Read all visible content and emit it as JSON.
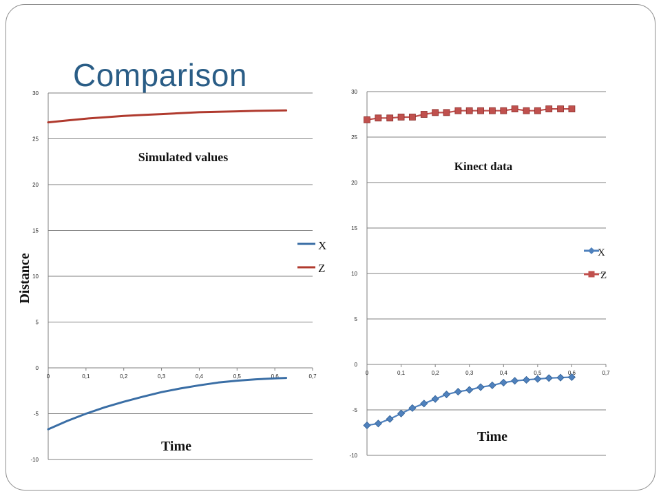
{
  "slide": {
    "title": "Comparison"
  },
  "colors": {
    "title": "#2a5d86",
    "x_series": "#3a6ea5",
    "z_series": "#b03a2e",
    "x_marker": "#4f81bd",
    "z_marker": "#c0504d",
    "grid": "#7f7f7f"
  },
  "chart_data": [
    {
      "type": "line",
      "title": "Simulated values",
      "xlabel": "Time",
      "ylabel": "Distance",
      "xlim": [
        0,
        0.7
      ],
      "ylim": [
        -10,
        30
      ],
      "x_ticks": [
        "0",
        "0,1",
        "0,2",
        "0,3",
        "0,4",
        "0,5",
        "0,6",
        "0,7"
      ],
      "y_ticks": [
        "-10",
        "-5",
        "0",
        "5",
        "10",
        "15",
        "20",
        "25",
        "30"
      ],
      "grid": true,
      "legend_position": "right",
      "markers": false,
      "series": [
        {
          "name": "X",
          "x": [
            0,
            0.05,
            0.1,
            0.15,
            0.2,
            0.25,
            0.3,
            0.35,
            0.4,
            0.45,
            0.5,
            0.55,
            0.6,
            0.63
          ],
          "y": [
            -6.7,
            -5.8,
            -5.0,
            -4.3,
            -3.7,
            -3.15,
            -2.65,
            -2.25,
            -1.9,
            -1.6,
            -1.4,
            -1.25,
            -1.15,
            -1.1
          ]
        },
        {
          "name": "Z",
          "x": [
            0,
            0.05,
            0.1,
            0.15,
            0.2,
            0.25,
            0.3,
            0.35,
            0.4,
            0.45,
            0.5,
            0.55,
            0.6,
            0.63
          ],
          "y": [
            26.8,
            27.0,
            27.2,
            27.35,
            27.5,
            27.6,
            27.7,
            27.8,
            27.9,
            27.95,
            28.0,
            28.05,
            28.08,
            28.1
          ]
        }
      ]
    },
    {
      "type": "line",
      "title": "Kinect data",
      "xlabel": "Time",
      "ylabel": "",
      "xlim": [
        0,
        0.7
      ],
      "ylim": [
        -10,
        30
      ],
      "x_ticks": [
        "0",
        "0,1",
        "0,2",
        "0,3",
        "0,4",
        "0,5",
        "0,6",
        "0,7"
      ],
      "y_ticks": [
        "-10",
        "-5",
        "0",
        "5",
        "10",
        "15",
        "20",
        "25",
        "30"
      ],
      "grid": true,
      "legend_position": "right",
      "markers": true,
      "series": [
        {
          "name": "X",
          "marker": "diamond",
          "x": [
            0,
            0.033,
            0.067,
            0.1,
            0.133,
            0.167,
            0.2,
            0.233,
            0.267,
            0.3,
            0.333,
            0.367,
            0.4,
            0.433,
            0.467,
            0.5,
            0.533,
            0.567,
            0.6
          ],
          "y": [
            -6.7,
            -6.5,
            -6.0,
            -5.4,
            -4.8,
            -4.3,
            -3.8,
            -3.3,
            -3.0,
            -2.8,
            -2.5,
            -2.3,
            -2.0,
            -1.8,
            -1.7,
            -1.6,
            -1.5,
            -1.45,
            -1.4
          ]
        },
        {
          "name": "Z",
          "marker": "square",
          "x": [
            0,
            0.033,
            0.067,
            0.1,
            0.133,
            0.167,
            0.2,
            0.233,
            0.267,
            0.3,
            0.333,
            0.367,
            0.4,
            0.433,
            0.467,
            0.5,
            0.533,
            0.567,
            0.6
          ],
          "y": [
            26.9,
            27.1,
            27.1,
            27.2,
            27.2,
            27.5,
            27.7,
            27.7,
            27.9,
            27.9,
            27.9,
            27.9,
            27.9,
            28.1,
            27.9,
            27.9,
            28.1,
            28.1,
            28.1
          ]
        }
      ]
    }
  ]
}
